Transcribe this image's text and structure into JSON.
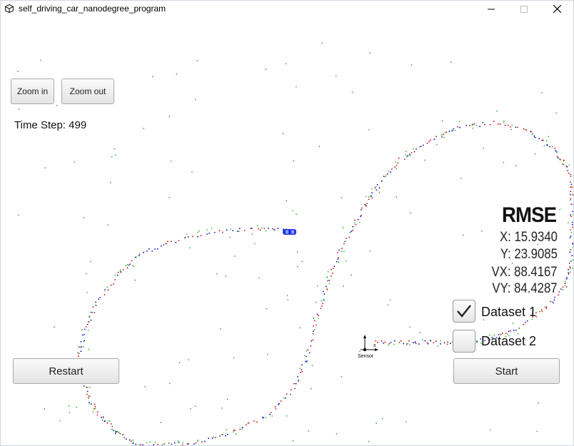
{
  "window": {
    "title": "self_driving_car_nanodegree_program",
    "app_icon": "unity-icon",
    "controls": [
      "minimize-icon",
      "maximize-icon",
      "close-icon"
    ]
  },
  "buttons": {
    "zoom_in": "Zoom in",
    "zoom_out": "Zoom out",
    "restart": "Restart",
    "start": "Start"
  },
  "status": {
    "time_step": "Time Step: 499"
  },
  "rmse": {
    "title": "RMSE",
    "x": "X: 15.9340",
    "y": "Y: 23.9085",
    "vx": "VX: 88.4167",
    "vy": "VY: 84.4287"
  },
  "datasets": [
    {
      "label": "Dataset 1",
      "checked": true
    },
    {
      "label": "Dataset 2",
      "checked": false
    }
  ],
  "scene": {
    "sensor_label": "Sensor",
    "axis_label": "x",
    "colors": {
      "radar": "#0000cc",
      "lidar": "#cc0000",
      "estimate": "#00aa00",
      "car": "#2233ee"
    }
  }
}
